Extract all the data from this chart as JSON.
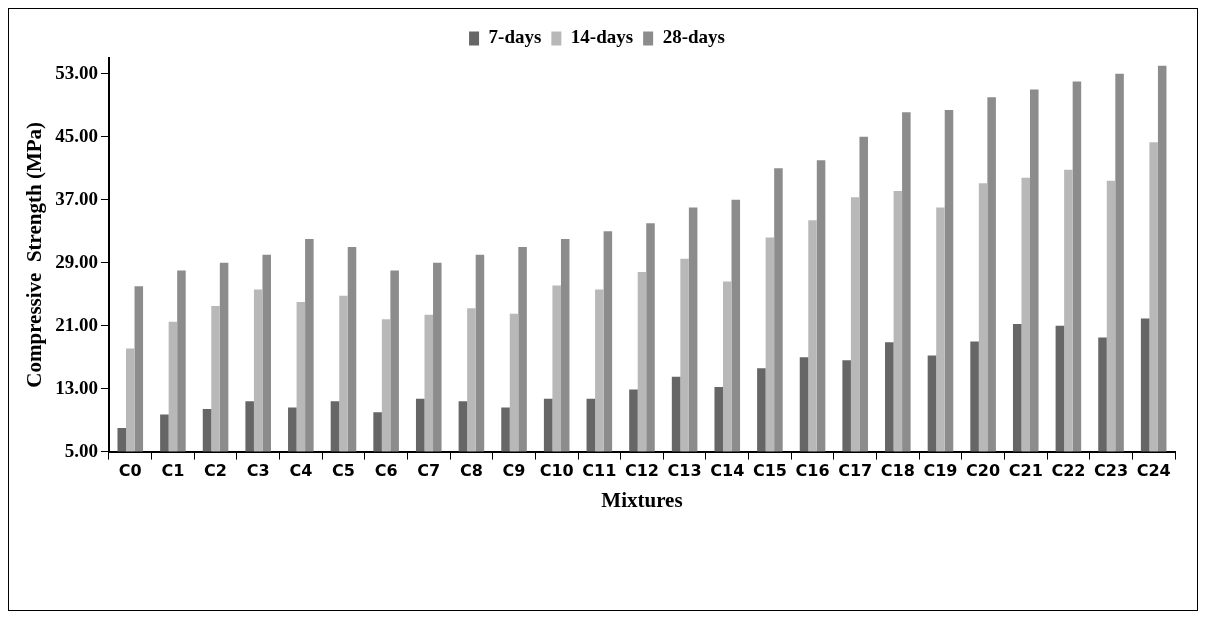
{
  "chart_data": {
    "type": "bar",
    "xlabel": "Mixtures",
    "ylabel": "Compressive  Strength (MPa)",
    "categories": [
      "C0",
      "C1",
      "C2",
      "C3",
      "C4",
      "C5",
      "C6",
      "C7",
      "C8",
      "C9",
      "C10",
      "C11",
      "C12",
      "C13",
      "C14",
      "C15",
      "C16",
      "C17",
      "C18",
      "C19",
      "C20",
      "C21",
      "C22",
      "C23",
      "C24"
    ],
    "series": [
      {
        "name": "7-days",
        "color": "#666666",
        "values": [
          8.0,
          9.7,
          10.4,
          11.4,
          10.6,
          11.4,
          10.0,
          11.7,
          11.4,
          10.6,
          11.7,
          11.7,
          12.9,
          14.5,
          13.2,
          15.6,
          17.0,
          16.6,
          18.9,
          17.2,
          19.0,
          21.2,
          21.0,
          19.5,
          21.9
        ]
      },
      {
        "name": "14-days",
        "color": "#b8b8b8",
        "values": [
          18.1,
          21.5,
          23.5,
          25.6,
          24.0,
          24.8,
          21.8,
          22.4,
          23.2,
          22.5,
          26.1,
          25.6,
          27.8,
          29.5,
          26.6,
          32.2,
          34.4,
          37.3,
          38.1,
          36.0,
          39.1,
          39.8,
          40.8,
          39.4,
          44.3
        ]
      },
      {
        "name": "28-days",
        "color": "#8c8c8c",
        "values": [
          26.0,
          28.0,
          29.0,
          30.0,
          32.0,
          31.0,
          28.0,
          29.0,
          30.0,
          31.0,
          32.0,
          33.0,
          34.0,
          36.0,
          37.0,
          41.0,
          42.0,
          45.0,
          48.1,
          48.4,
          50.0,
          51.0,
          52.0,
          53.0,
          54.0
        ]
      }
    ],
    "ylim": [
      5,
      55
    ],
    "yticks": [
      {
        "value": 5,
        "label": "5.00"
      },
      {
        "value": 13,
        "label": "13.00"
      },
      {
        "value": 21,
        "label": "21.00"
      },
      {
        "value": 29,
        "label": "29.00"
      },
      {
        "value": 37,
        "label": "37.00"
      },
      {
        "value": 45,
        "label": "45.00"
      },
      {
        "value": 53,
        "label": "53.00"
      }
    ],
    "grid": false,
    "legend": "top"
  }
}
